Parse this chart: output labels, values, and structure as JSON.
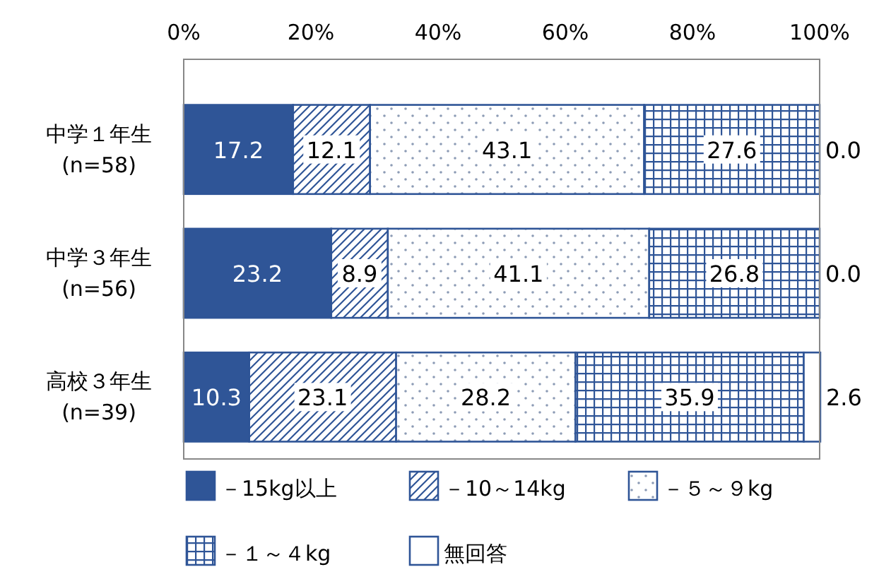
{
  "chart_data": {
    "type": "bar",
    "orientation": "horizontal",
    "stacked": true,
    "categories": [
      "中学１年生\n(n=58)",
      "中学３年生\n(n=56)",
      "高校３年生\n(n=39)"
    ],
    "series": [
      {
        "name": "－15kg以上",
        "color": "#2f5597",
        "values": [
          17.2,
          23.2,
          10.3
        ],
        "value_labels": [
          "17.2",
          "23.2",
          "10.3"
        ]
      },
      {
        "name": "－10～14kg",
        "color": "#2f5597",
        "values": [
          12.1,
          8.9,
          23.1
        ],
        "value_labels": [
          "12.1",
          "8.9",
          "23.1"
        ]
      },
      {
        "name": "－５～９kg",
        "color": "#2f5597",
        "values": [
          43.1,
          41.1,
          28.2
        ],
        "value_labels": [
          "43.1",
          "41.1",
          "28.2"
        ]
      },
      {
        "name": "－１～４kg",
        "color": "#2f5597",
        "values": [
          27.6,
          26.8,
          35.9
        ],
        "value_labels": [
          "27.6",
          "26.8",
          "35.9"
        ]
      },
      {
        "name": "無回答",
        "color": "#ffffff",
        "values": [
          0.0,
          0.0,
          2.6
        ],
        "value_labels": [
          "0.0",
          "0.0",
          "2.6"
        ]
      }
    ],
    "xlim": [
      0,
      100
    ],
    "xticks": [
      {
        "value": 0,
        "label": "0%"
      },
      {
        "value": 20,
        "label": "20%"
      },
      {
        "value": 40,
        "label": "40%"
      },
      {
        "value": 60,
        "label": "60%"
      },
      {
        "value": 80,
        "label": "80%"
      },
      {
        "value": 100,
        "label": "100%"
      }
    ],
    "legend": "bottom"
  }
}
